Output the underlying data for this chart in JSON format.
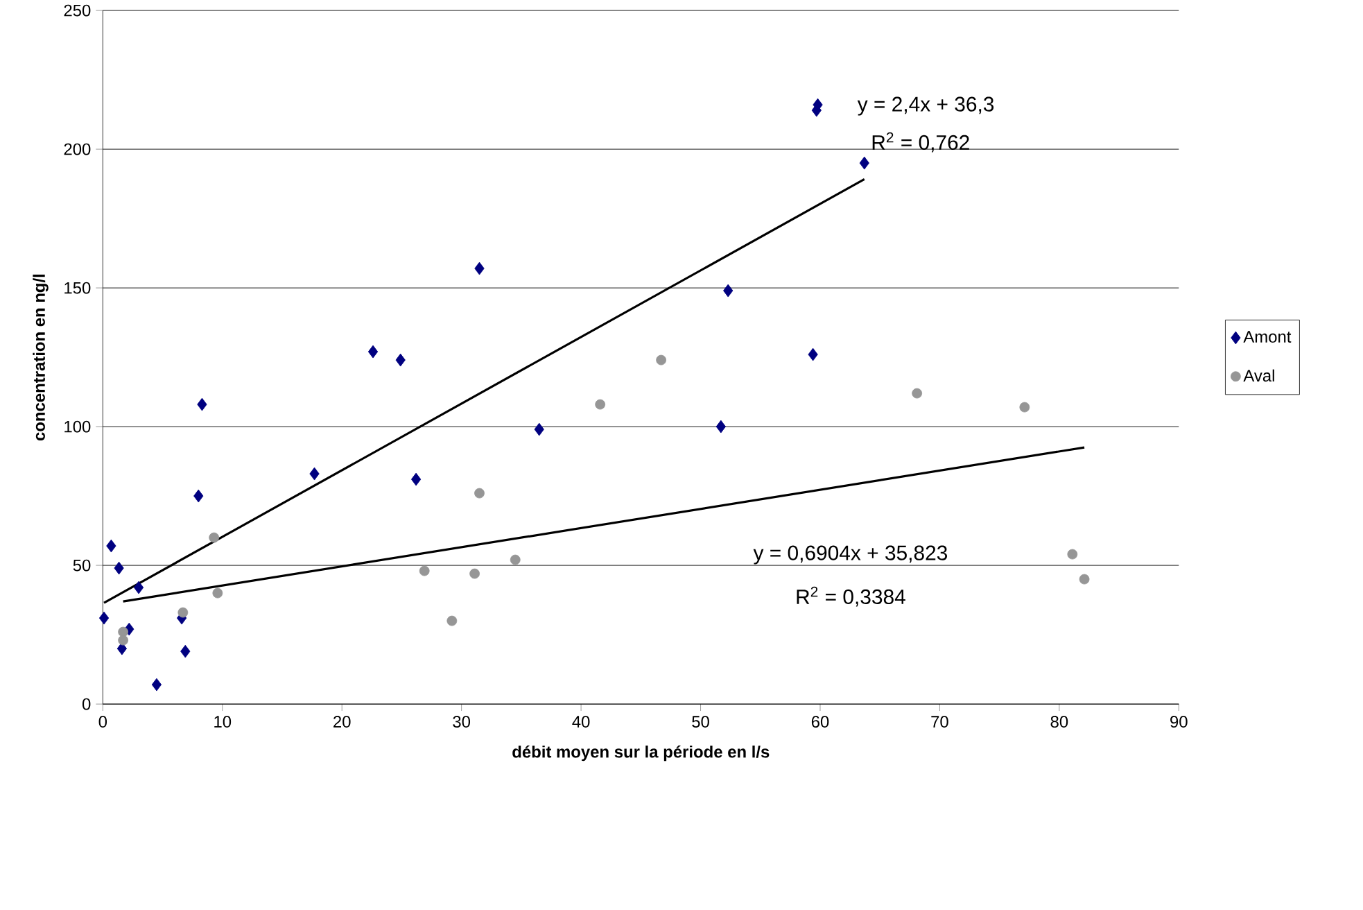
{
  "chart_data": {
    "type": "scatter",
    "xlabel": "débit moyen sur la période en l/s",
    "ylabel": "concentration en ng/l",
    "xlim": [
      0,
      90
    ],
    "ylim": [
      0,
      250
    ],
    "xticks": [
      0,
      10,
      20,
      30,
      40,
      50,
      60,
      70,
      80,
      90
    ],
    "yticks": [
      0,
      50,
      100,
      150,
      200,
      250
    ],
    "grid": "y",
    "legend": "right",
    "series": [
      {
        "name": "Amont",
        "color": "#000080",
        "marker": "diamond",
        "x": [
          0.1,
          0.7,
          1.35,
          3.0,
          2.2,
          1.6,
          8.0,
          4.5,
          6.6,
          6.9,
          17.7,
          26.2,
          8.3,
          22.6,
          24.9,
          31.5,
          36.5,
          52.3,
          51.7,
          59.4,
          59.7,
          59.8,
          63.7
        ],
        "values": [
          31,
          57,
          49,
          42,
          27,
          20,
          75,
          7,
          31,
          19,
          83,
          81,
          108,
          127,
          124,
          157,
          99,
          149,
          100,
          126,
          214,
          216,
          195
        ]
      },
      {
        "name": "Aval",
        "color": "#969696",
        "marker": "circle",
        "x": [
          1.7,
          1.7,
          6.7,
          9.3,
          9.6,
          31.5,
          26.9,
          31.1,
          34.5,
          41.6,
          46.7,
          68.1,
          77.1,
          81.1,
          82.1,
          29.2
        ],
        "values": [
          26,
          23,
          33,
          60,
          40,
          76,
          48,
          47,
          52,
          108,
          124,
          112,
          107,
          54,
          45,
          30
        ]
      },
      {
        "type": "line",
        "color": "#000000",
        "marker": "none",
        "x": [
          0.1,
          63.7
        ],
        "values": [
          36.5,
          189.2
        ]
      },
      {
        "type": "line",
        "color": "#000000",
        "marker": "none",
        "x": [
          1.7,
          82.1
        ],
        "values": [
          37.0,
          92.5
        ]
      }
    ],
    "annotations": [
      "y = 2,4x + 36,3",
      "R$^{2}$ = 0,762",
      "y = 0,6904x + 35,823",
      "R$^{2}$ = 0,3384"
    ]
  }
}
